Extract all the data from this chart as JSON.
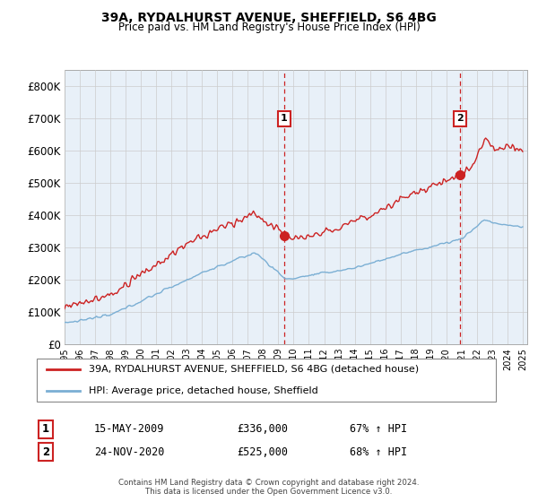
{
  "title_line1": "39A, RYDALHURST AVENUE, SHEFFIELD, S6 4BG",
  "title_line2": "Price paid vs. HM Land Registry's House Price Index (HPI)",
  "ylim": [
    0,
    850000
  ],
  "yticks": [
    0,
    100000,
    200000,
    300000,
    400000,
    500000,
    600000,
    700000,
    800000
  ],
  "ytick_labels": [
    "£0",
    "£100K",
    "£200K",
    "£300K",
    "£400K",
    "£500K",
    "£600K",
    "£700K",
    "£800K"
  ],
  "hpi_color": "#7bafd4",
  "price_color": "#cc2222",
  "plot_bg_color": "#e8f0f8",
  "sale1_year_float": 2009.375,
  "sale1_price": 336000,
  "sale1_hpi_val": 200000,
  "sale1_date": "15-MAY-2009",
  "sale1_hpi_text": "67% ↑ HPI",
  "sale2_year_float": 2020.9,
  "sale2_price": 525000,
  "sale2_hpi_val": 310000,
  "sale2_date": "24-NOV-2020",
  "sale2_hpi_text": "68% ↑ HPI",
  "legend_property": "39A, RYDALHURST AVENUE, SHEFFIELD, S6 4BG (detached house)",
  "legend_hpi": "HPI: Average price, detached house, Sheffield",
  "footer": "Contains HM Land Registry data © Crown copyright and database right 2024.\nThis data is licensed under the Open Government Licence v3.0.",
  "background_color": "#ffffff",
  "grid_color": "#cccccc"
}
